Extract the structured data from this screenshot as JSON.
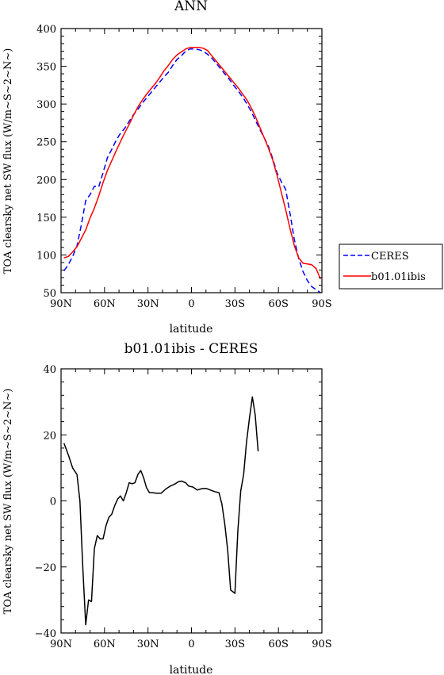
{
  "chart_data": [
    {
      "type": "line",
      "title": "ANN",
      "xlabel": "latitude",
      "ylabel": "TOA clearsky net SW flux (W/m~S~2~N~)",
      "xlim": [
        90,
        -90
      ],
      "ylim": [
        50,
        400
      ],
      "xtick_values": [
        90,
        60,
        30,
        0,
        -30,
        -60,
        -90
      ],
      "xtick_labels": [
        "90N",
        "60N",
        "30N",
        "0",
        "30S",
        "60S",
        "90S"
      ],
      "ytick_values": [
        50,
        100,
        150,
        200,
        250,
        300,
        350,
        400
      ],
      "ytick_labels": [
        "50",
        "100",
        "150",
        "200",
        "250",
        "300",
        "350",
        "400"
      ],
      "legend_placement": "right, outside",
      "series": [
        {
          "name": "CERES",
          "color": "#0000ff",
          "dash": "dashed",
          "points": [
            [
              88,
              79
            ],
            [
              85,
              87
            ],
            [
              82,
              98
            ],
            [
              79,
              112
            ],
            [
              76,
              140
            ],
            [
              73,
              172
            ],
            [
              70,
              180
            ],
            [
              67,
              191
            ],
            [
              64,
              190
            ],
            [
              61,
              209
            ],
            [
              58,
              229
            ],
            [
              55,
              240
            ],
            [
              52,
              252
            ],
            [
              49,
              261
            ],
            [
              46,
              268
            ],
            [
              43,
              277
            ],
            [
              40,
              286
            ],
            [
              37,
              293
            ],
            [
              34,
              301
            ],
            [
              31,
              308
            ],
            [
              28,
              315
            ],
            [
              25,
              322
            ],
            [
              22,
              329
            ],
            [
              19,
              336
            ],
            [
              16,
              342
            ],
            [
              13,
              351
            ],
            [
              10,
              359
            ],
            [
              7,
              364
            ],
            [
              4,
              370
            ],
            [
              1,
              373
            ],
            [
              -2,
              373
            ],
            [
              -5,
              372
            ],
            [
              -8,
              370
            ],
            [
              -11,
              366
            ],
            [
              -14,
              361
            ],
            [
              -17,
              354
            ],
            [
              -20,
              347
            ],
            [
              -23,
              340
            ],
            [
              -26,
              333
            ],
            [
              -29,
              325
            ],
            [
              -32,
              318
            ],
            [
              -35,
              310
            ],
            [
              -38,
              301
            ],
            [
              -41,
              291
            ],
            [
              -44,
              279
            ],
            [
              -47,
              267
            ],
            [
              -50,
              256
            ],
            [
              -53,
              244
            ],
            [
              -56,
              228
            ],
            [
              -59,
              209
            ],
            [
              -62,
              197
            ],
            [
              -65,
              187
            ],
            [
              -68,
              155
            ],
            [
              -71,
              120
            ],
            [
              -74,
              95
            ],
            [
              -77,
              78
            ],
            [
              -80,
              66
            ],
            [
              -83,
              58
            ],
            [
              -86,
              54
            ],
            [
              -89,
              50
            ]
          ]
        },
        {
          "name": "b01.01ibis",
          "color": "#ff0000",
          "dash": "solid",
          "points": [
            [
              88,
              96
            ],
            [
              85,
              98
            ],
            [
              82,
              104
            ],
            [
              79,
              111
            ],
            [
              76,
              122
            ],
            [
              73,
              133
            ],
            [
              70,
              149
            ],
            [
              67,
              162
            ],
            [
              64,
              178
            ],
            [
              61,
              196
            ],
            [
              58,
              212
            ],
            [
              55,
              225
            ],
            [
              52,
              238
            ],
            [
              49,
              250
            ],
            [
              46,
              262
            ],
            [
              43,
              273
            ],
            [
              40,
              285
            ],
            [
              37,
              296
            ],
            [
              34,
              305
            ],
            [
              31,
              313
            ],
            [
              28,
              320
            ],
            [
              25,
              327
            ],
            [
              22,
              335
            ],
            [
              19,
              344
            ],
            [
              16,
              351
            ],
            [
              13,
              359
            ],
            [
              10,
              365
            ],
            [
              7,
              369
            ],
            [
              4,
              373
            ],
            [
              1,
              375
            ],
            [
              -2,
              375
            ],
            [
              -5,
              375
            ],
            [
              -8,
              374
            ],
            [
              -11,
              371
            ],
            [
              -14,
              364
            ],
            [
              -17,
              357
            ],
            [
              -20,
              350
            ],
            [
              -23,
              343
            ],
            [
              -26,
              336
            ],
            [
              -29,
              329
            ],
            [
              -32,
              322
            ],
            [
              -35,
              314
            ],
            [
              -38,
              306
            ],
            [
              -41,
              296
            ],
            [
              -44,
              284
            ],
            [
              -47,
              270
            ],
            [
              -50,
              256
            ],
            [
              -53,
              242
            ],
            [
              -56,
              226
            ],
            [
              -59,
              206
            ],
            [
              -62,
              183
            ],
            [
              -65,
              160
            ],
            [
              -68,
              135
            ],
            [
              -71,
              112
            ],
            [
              -74,
              96
            ],
            [
              -77,
              89
            ],
            [
              -80,
              88
            ],
            [
              -83,
              87
            ],
            [
              -86,
              82
            ],
            [
              -89,
              68
            ]
          ]
        }
      ]
    },
    {
      "type": "line",
      "title": "b01.01ibis - CERES",
      "xlabel": "latitude",
      "ylabel": "TOA clearsky net SW flux (W/m~S~2~N~)",
      "xlim": [
        90,
        -90
      ],
      "ylim": [
        -40,
        40
      ],
      "xtick_values": [
        90,
        60,
        30,
        0,
        -30,
        -60,
        -90
      ],
      "xtick_labels": [
        "90N",
        "60N",
        "30N",
        "0",
        "30S",
        "60S",
        "90S"
      ],
      "ytick_values": [
        -40,
        -20,
        0,
        20,
        40
      ],
      "ytick_labels": [
        "−40",
        "−20",
        "0",
        "20",
        "40"
      ],
      "series": [
        {
          "color": "#000000",
          "dash": "solid",
          "points": [
            [
              88,
              17.5
            ],
            [
              85,
              14
            ],
            [
              82,
              10
            ],
            [
              79,
              8
            ],
            [
              77,
              0
            ],
            [
              75,
              -20
            ],
            [
              73,
              -37.5
            ],
            [
              71,
              -30
            ],
            [
              69,
              -30.5
            ],
            [
              67,
              -14.5
            ],
            [
              65,
              -10.5
            ],
            [
              63,
              -11.5
            ],
            [
              61,
              -11.5
            ],
            [
              59,
              -7.5
            ],
            [
              57,
              -5
            ],
            [
              55,
              -4
            ],
            [
              53,
              -1.5
            ],
            [
              51,
              0.5
            ],
            [
              49,
              1.5
            ],
            [
              47,
              0
            ],
            [
              45,
              2.5
            ],
            [
              43,
              5.5
            ],
            [
              41,
              5.2
            ],
            [
              39,
              5.5
            ],
            [
              37,
              8
            ],
            [
              35,
              9.2
            ],
            [
              33,
              7
            ],
            [
              31,
              4
            ],
            [
              29,
              2.5
            ],
            [
              27,
              2.5
            ],
            [
              24,
              2.3
            ],
            [
              21,
              2.3
            ],
            [
              18,
              3.5
            ],
            [
              15,
              4.4
            ],
            [
              12,
              5
            ],
            [
              9,
              5.8
            ],
            [
              7,
              6
            ],
            [
              4,
              5.5
            ],
            [
              2,
              4.5
            ],
            [
              -1,
              4.2
            ],
            [
              -4,
              3.3
            ],
            [
              -7,
              3.7
            ],
            [
              -10,
              3.8
            ],
            [
              -13,
              3.3
            ],
            [
              -16,
              2.8
            ],
            [
              -19,
              2.5
            ],
            [
              -21,
              -1
            ],
            [
              -23,
              -7
            ],
            [
              -25,
              -15
            ],
            [
              -27,
              -27
            ],
            [
              -30,
              -28
            ],
            [
              -32,
              -9
            ],
            [
              -34,
              3
            ],
            [
              -36,
              8
            ],
            [
              -38,
              18
            ],
            [
              -40,
              25
            ],
            [
              -42,
              31.5
            ],
            [
              -44,
              26
            ],
            [
              -46,
              15
            ]
          ]
        }
      ]
    }
  ]
}
